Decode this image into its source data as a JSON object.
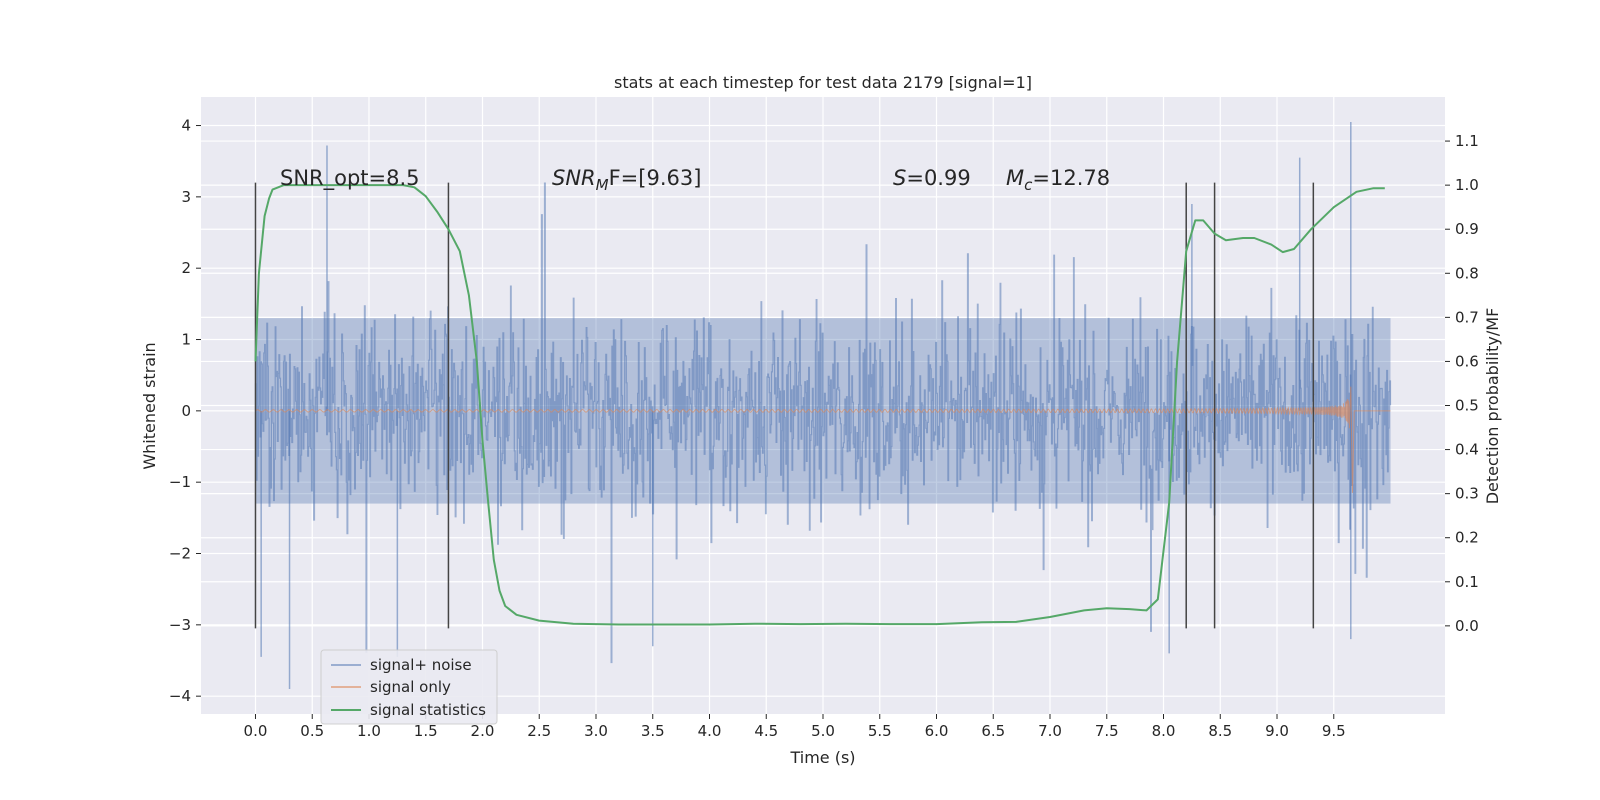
{
  "chart_data": {
    "type": "line",
    "title": "stats at each timestep for test data 2179 [signal=1]",
    "xlabel": "Time (s)",
    "ylabel_left": "Whitened strain",
    "ylabel_right": "Detection probability/MF",
    "xlim": [
      -0.48,
      10.48
    ],
    "ylim_left": [
      -4.25,
      4.4
    ],
    "ylim_right": [
      -0.2,
      1.2
    ],
    "x_ticks": [
      "0.0",
      "0.5",
      "1.0",
      "1.5",
      "2.0",
      "2.5",
      "3.0",
      "3.5",
      "4.0",
      "4.5",
      "5.0",
      "5.5",
      "6.0",
      "6.5",
      "7.0",
      "7.5",
      "8.0",
      "8.5",
      "9.0",
      "9.5"
    ],
    "y_ticks_left": [
      "4",
      "3",
      "2",
      "1",
      "0",
      "−1",
      "−2",
      "−3",
      "−4"
    ],
    "y_ticks_right": [
      "1.1",
      "1.0",
      "0.9",
      "0.8",
      "0.7",
      "0.6",
      "0.5",
      "0.4",
      "0.3",
      "0.2",
      "0.1",
      "0.0"
    ],
    "grid": true,
    "legend_position": "lower-left",
    "annotations": {
      "snr_opt": "SNR_opt=8.5",
      "snr_mf_prefix": "SNR",
      "snr_mf_sub": "M",
      "snr_mf_suffix": "F=[9.63]",
      "s_label": "S",
      "s_value": "=0.99",
      "mc_label": "M",
      "mc_sub": "c",
      "mc_value": "=12.78"
    },
    "vertical_markers_x": [
      0.0,
      1.7,
      8.2,
      8.45,
      9.32
    ],
    "series": [
      {
        "name": "signal+ noise",
        "axis": "left",
        "color": "#4c72b0",
        "summary": {
          "x_range": [
            0.0,
            10.0
          ],
          "typical_amplitude": 1.3,
          "max": 4.05,
          "min": -3.9
        }
      },
      {
        "name": "signal only",
        "axis": "left",
        "color": "#dd8452",
        "summary": {
          "x_range": [
            0.0,
            9.65
          ],
          "peak_amplitude": 1.5,
          "peak_x": 9.65
        }
      },
      {
        "name": "signal statistics",
        "axis": "right",
        "color": "#55a868",
        "x": [
          0.0,
          0.03,
          0.08,
          0.12,
          0.15,
          0.25,
          0.4,
          0.7,
          1.0,
          1.3,
          1.4,
          1.5,
          1.6,
          1.7,
          1.8,
          1.88,
          1.95,
          2.0,
          2.05,
          2.1,
          2.15,
          2.2,
          2.3,
          2.5,
          2.8,
          3.2,
          3.6,
          4.0,
          4.4,
          4.8,
          5.2,
          5.6,
          6.0,
          6.4,
          6.7,
          7.0,
          7.3,
          7.5,
          7.7,
          7.85,
          7.95,
          8.05,
          8.12,
          8.2,
          8.28,
          8.35,
          8.45,
          8.55,
          8.7,
          8.8,
          8.95,
          9.05,
          9.15,
          9.3,
          9.5,
          9.7,
          9.85,
          9.95
        ],
        "y": [
          0.6,
          0.8,
          0.93,
          0.97,
          0.99,
          1.0,
          1.0,
          1.0,
          1.0,
          1.0,
          0.995,
          0.975,
          0.94,
          0.9,
          0.85,
          0.75,
          0.6,
          0.42,
          0.28,
          0.15,
          0.08,
          0.045,
          0.025,
          0.012,
          0.005,
          0.003,
          0.003,
          0.003,
          0.005,
          0.004,
          0.005,
          0.004,
          0.004,
          0.008,
          0.009,
          0.02,
          0.035,
          0.04,
          0.038,
          0.035,
          0.06,
          0.28,
          0.6,
          0.85,
          0.92,
          0.92,
          0.89,
          0.875,
          0.88,
          0.88,
          0.865,
          0.848,
          0.855,
          0.9,
          0.95,
          0.985,
          0.993,
          0.993
        ]
      }
    ]
  }
}
